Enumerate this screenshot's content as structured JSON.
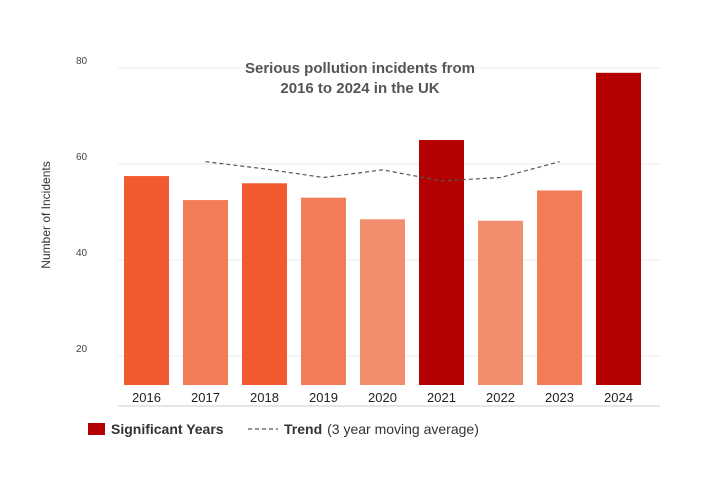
{
  "chart_data": {
    "type": "bar",
    "title_lines": [
      "Serious pollution incidents from",
      "2016 to 2024 in the UK"
    ],
    "ylabel": "Number of Incidents",
    "xlabel": "",
    "ylim": [
      14,
      80
    ],
    "yticks": [
      20,
      40,
      60,
      80
    ],
    "categories": [
      "2016",
      "2017",
      "2018",
      "2019",
      "2020",
      "2021",
      "2022",
      "2023",
      "2024"
    ],
    "values": [
      57.5,
      52.5,
      56,
      53,
      48.5,
      65,
      48.2,
      54.5,
      79
    ],
    "bar_colors": [
      "#f05a2e",
      "#f27c55",
      "#f05a2e",
      "#f27c55",
      "#f28e6d",
      "#b40000",
      "#f28e6d",
      "#f27c55",
      "#b40000"
    ],
    "trend": {
      "name": "Trend",
      "name_suffix": "(3 year moving average)",
      "categories": [
        "2017",
        "2018",
        "2019",
        "2020",
        "2021",
        "2022",
        "2023"
      ],
      "values": [
        60.5,
        59,
        57.2,
        58.8,
        56.5,
        57.2,
        60.5
      ],
      "color": "#555555"
    },
    "legend": {
      "significant_label": "Significant Years",
      "significant_color": "#b40000"
    }
  }
}
